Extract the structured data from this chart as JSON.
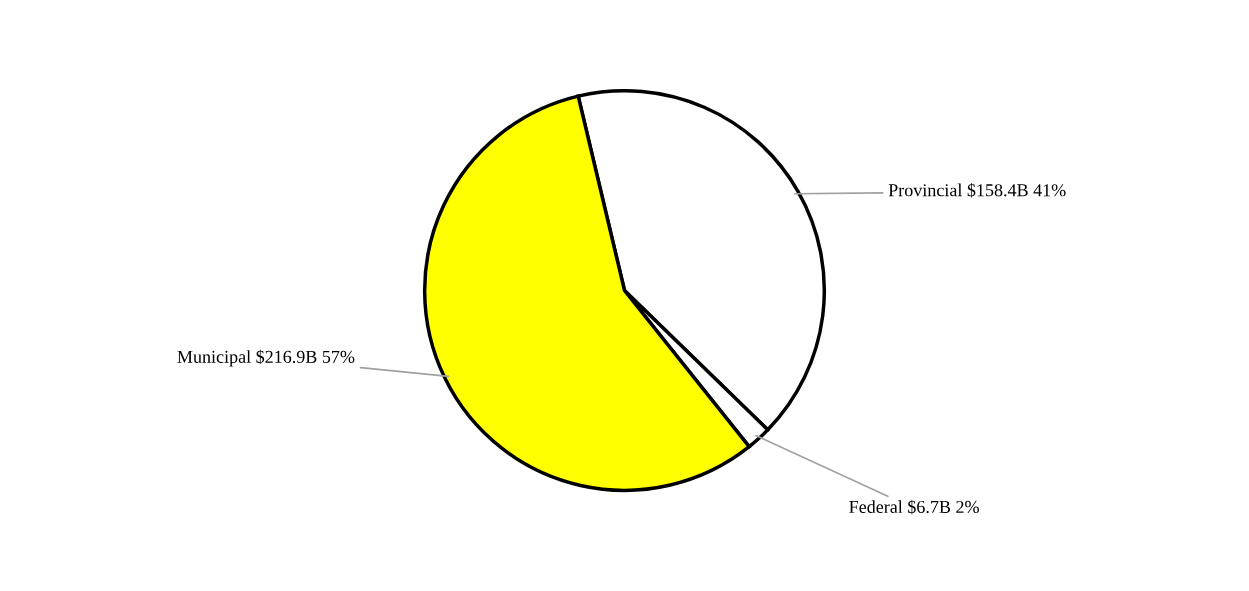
{
  "chart_data": {
    "type": "pie",
    "categories": [
      "Provincial $158.4B",
      "Federal $6.7B",
      "Municipal $216.9B"
    ],
    "values": [
      41,
      2,
      57
    ],
    "colors": [
      "#ffffff",
      "#ffffff",
      "#ffff00"
    ],
    "value_labels": [
      "41%",
      "2%",
      "57%"
    ],
    "legend": false
  }
}
